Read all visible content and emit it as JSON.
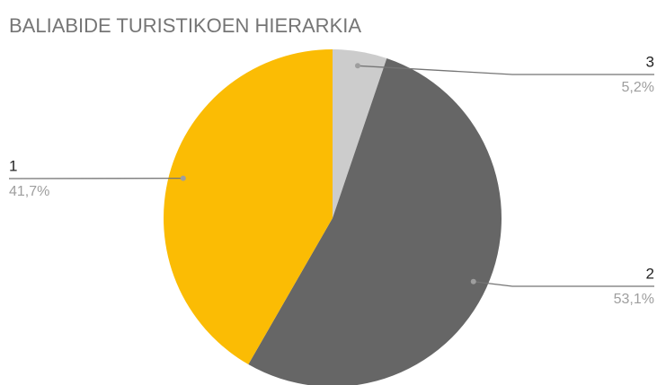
{
  "chart_data": {
    "type": "pie",
    "title": "BALIABIDE TURISTIKOEN HIERARKIA",
    "categories": [
      "3",
      "2",
      "1"
    ],
    "values": [
      5.2,
      53.1,
      41.7
    ],
    "value_labels": [
      "5,2%",
      "53,1%",
      "41,7%"
    ],
    "colors": [
      "#cccccc",
      "#666666",
      "#fbbc04"
    ]
  }
}
